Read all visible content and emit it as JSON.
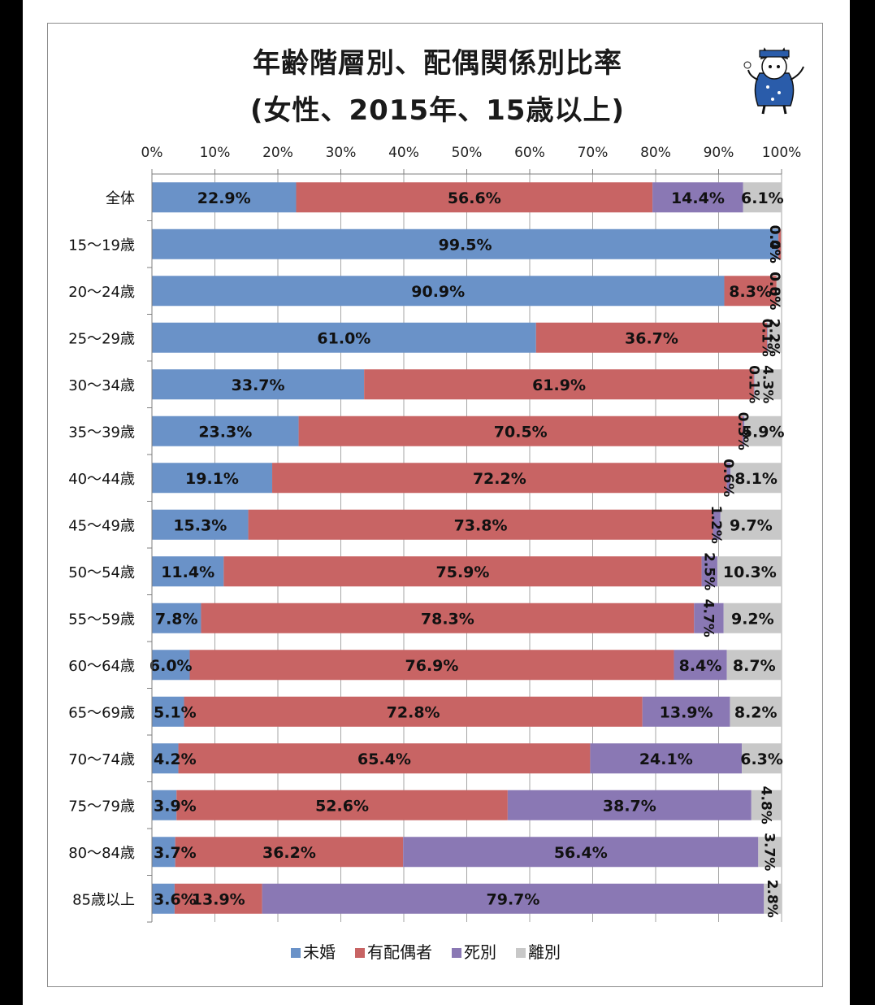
{
  "chart_data": {
    "type": "bar",
    "orientation": "horizontal",
    "stacked": true,
    "title_line1": "年齢階層別、配偶関係別比率",
    "title_line2": "(女性、2015年、15歳以上)",
    "xlim": [
      0,
      100
    ],
    "x_ticks": [
      "0%",
      "10%",
      "20%",
      "30%",
      "40%",
      "50%",
      "60%",
      "70%",
      "80%",
      "90%",
      "100%"
    ],
    "grid": true,
    "legend_position": "bottom",
    "categories": [
      "全体",
      "15〜19歳",
      "20〜24歳",
      "25〜29歳",
      "30〜34歳",
      "35〜39歳",
      "40〜44歳",
      "45〜49歳",
      "50〜54歳",
      "55〜59歳",
      "60〜64歳",
      "65〜69歳",
      "70〜74歳",
      "75〜79歳",
      "80〜84歳",
      "85歳以上"
    ],
    "series": [
      {
        "name": "未婚",
        "color": "#6a92c8",
        "values": [
          22.9,
          99.5,
          90.9,
          61.0,
          33.7,
          23.3,
          19.1,
          15.3,
          11.4,
          7.8,
          6.0,
          5.1,
          4.2,
          3.9,
          3.7,
          3.6
        ],
        "labels": [
          "22.9%",
          "99.5%",
          "90.9%",
          "61.0%",
          "33.7%",
          "23.3%",
          "19.1%",
          "15.3%",
          "11.4%",
          "7.8%",
          "6.0%",
          "5.1%",
          "4.2%",
          "3.9%",
          "3.7%",
          "3.6%"
        ]
      },
      {
        "name": "有配偶者",
        "color": "#c86464",
        "values": [
          56.6,
          0.4,
          8.3,
          36.7,
          61.9,
          70.5,
          72.2,
          73.8,
          75.9,
          78.3,
          76.9,
          72.8,
          65.4,
          52.6,
          36.2,
          13.9
        ],
        "labels": [
          "56.6%",
          "0.4%",
          "8.3%",
          "36.7%",
          "61.9%",
          "70.5%",
          "72.2%",
          "73.8%",
          "75.9%",
          "78.3%",
          "76.9%",
          "72.8%",
          "65.4%",
          "52.6%",
          "36.2%",
          "13.9%"
        ]
      },
      {
        "name": "死別",
        "color": "#8a78b4",
        "values": [
          14.4,
          0.0,
          0.0,
          0.1,
          0.1,
          0.3,
          0.6,
          1.2,
          2.5,
          4.7,
          8.4,
          13.9,
          24.1,
          38.7,
          56.4,
          79.7
        ],
        "labels": [
          "14.4%",
          "0.0%",
          "0.0%",
          "0.1%",
          "0.1%",
          "0.3%",
          "0.6%",
          "1.2%",
          "2.5%",
          "4.7%",
          "8.4%",
          "13.9%",
          "24.1%",
          "38.7%",
          "56.4%",
          "79.7%"
        ]
      },
      {
        "name": "離別",
        "color": "#c8c8c8",
        "values": [
          6.1,
          0.0,
          0.8,
          2.2,
          4.3,
          5.9,
          8.1,
          9.7,
          10.3,
          9.2,
          8.7,
          8.2,
          6.3,
          4.8,
          3.7,
          2.8
        ],
        "labels": [
          "6.1%",
          "0.0%",
          "0.8%",
          "2.2%",
          "4.3%",
          "5.9%",
          "8.1%",
          "9.7%",
          "10.3%",
          "9.2%",
          "8.7%",
          "8.2%",
          "6.3%",
          "4.8%",
          "3.7%",
          "2.8%"
        ]
      }
    ]
  },
  "mascot": {
    "icon": "cat-mascot-icon"
  }
}
